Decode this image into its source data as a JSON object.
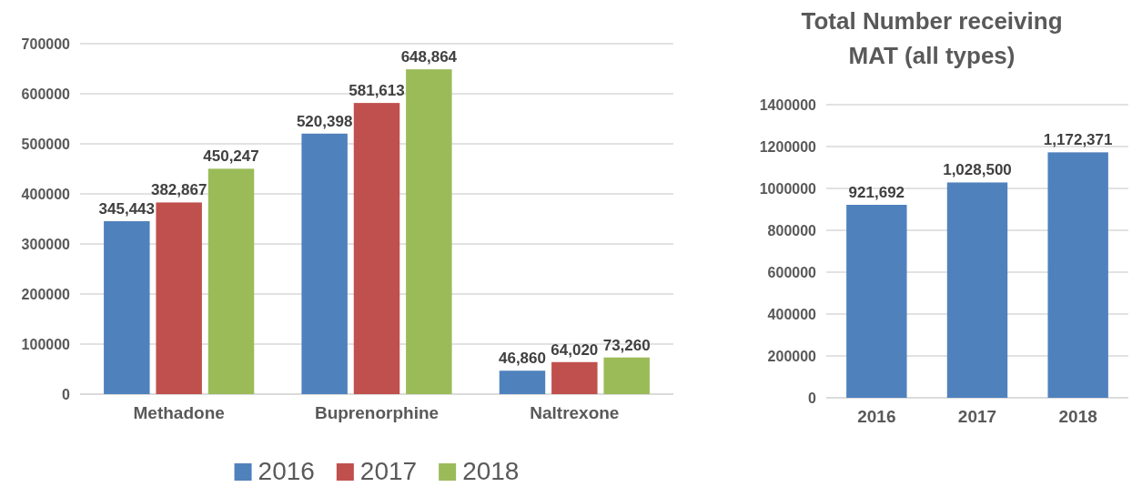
{
  "chart_data": [
    {
      "type": "bar",
      "categories": [
        "Methadone",
        "Buprenorphine",
        "Naltrexone"
      ],
      "series": [
        {
          "name": "2016",
          "color": "#4f81bd",
          "values": [
            345443,
            520398,
            46860
          ],
          "value_labels": [
            "345,443",
            "520,398",
            "46,860"
          ]
        },
        {
          "name": "2017",
          "color": "#c0504d",
          "values": [
            382867,
            581613,
            64020
          ],
          "value_labels": [
            "382,867",
            "581,613",
            "64,020"
          ]
        },
        {
          "name": "2018",
          "color": "#9bbb59",
          "values": [
            450247,
            648864,
            73260
          ],
          "value_labels": [
            "450,247",
            "648,864",
            "73,260"
          ]
        }
      ],
      "ylim": [
        0,
        700000
      ],
      "yticks": [
        0,
        100000,
        200000,
        300000,
        400000,
        500000,
        600000,
        700000
      ],
      "grid": "y",
      "legend": "bottom"
    },
    {
      "type": "bar",
      "title": "Total Number receiving MAT (all types)",
      "categories": [
        "2016",
        "2017",
        "2018"
      ],
      "series": [
        {
          "color": "#4f81bd",
          "values": [
            921692,
            1028500,
            1172371
          ],
          "value_labels": [
            "921,692",
            "1,028,500",
            "1,172,371"
          ]
        }
      ],
      "ylim": [
        0,
        1400000
      ],
      "yticks": [
        0,
        200000,
        400000,
        600000,
        800000,
        1000000,
        1200000,
        1400000
      ],
      "grid": "y",
      "legend": false
    }
  ]
}
